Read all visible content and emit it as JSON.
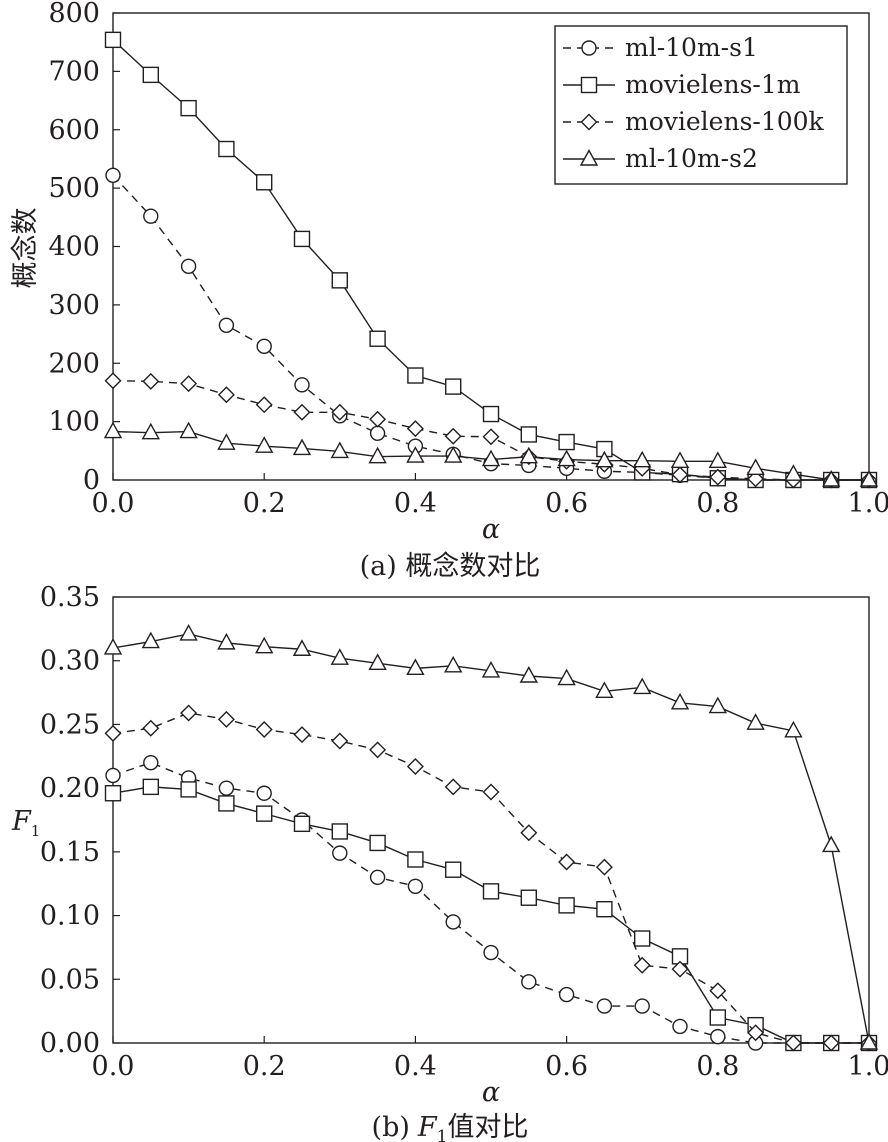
{
  "chart_data": [
    {
      "type": "line",
      "caption": "(a) 概念数对比",
      "xlabel": "α",
      "ylabel": "概念数",
      "xlim": [
        0,
        1
      ],
      "ylim": [
        0,
        800
      ],
      "xticks": [
        "0.0",
        "0.2",
        "0.4",
        "0.6",
        "0.8",
        "1.0"
      ],
      "yticks": [
        "0",
        "100",
        "200",
        "300",
        "400",
        "500",
        "600",
        "700",
        "800"
      ],
      "grid": false,
      "legend": "top-right",
      "x": [
        0,
        0.05,
        0.1,
        0.15,
        0.2,
        0.25,
        0.3,
        0.35,
        0.4,
        0.45,
        0.5,
        0.55,
        0.6,
        0.65,
        0.7,
        0.75,
        0.8,
        0.85,
        0.9,
        0.95,
        1.0
      ],
      "series": [
        {
          "name": "ml-10m-s1",
          "marker": "circle",
          "dash": true,
          "values": [
            522,
            452,
            366,
            265,
            229,
            163,
            110,
            80,
            58,
            44,
            28,
            25,
            20,
            15,
            13,
            8,
            3,
            0,
            0,
            0,
            0
          ]
        },
        {
          "name": "movielens-1m",
          "marker": "square",
          "dash": false,
          "values": [
            754,
            694,
            637,
            567,
            510,
            413,
            342,
            242,
            179,
            160,
            113,
            78,
            65,
            53,
            13,
            10,
            3,
            0,
            0,
            0,
            0
          ]
        },
        {
          "name": "movielens-100k",
          "marker": "diamond",
          "dash": true,
          "values": [
            170,
            169,
            165,
            146,
            129,
            116,
            116,
            104,
            88,
            75,
            74,
            40,
            32,
            27,
            20,
            9,
            5,
            2,
            0,
            0,
            0
          ]
        },
        {
          "name": "ml-10m-s2",
          "marker": "triangle",
          "dash": false,
          "values": [
            83,
            81,
            83,
            63,
            58,
            54,
            49,
            40,
            41,
            41,
            35,
            40,
            35,
            33,
            33,
            32,
            32,
            20,
            10,
            0,
            0
          ]
        }
      ]
    },
    {
      "type": "line",
      "caption_prefix": "(b)",
      "caption_var": "F",
      "caption_sub": "1",
      "caption_suffix": "值对比",
      "xlabel": "α",
      "ylabel_var": "F",
      "ylabel_sub": "1",
      "xlim": [
        0,
        1
      ],
      "ylim": [
        0,
        0.35
      ],
      "xticks": [
        "0.0",
        "0.2",
        "0.4",
        "0.6",
        "0.8",
        "1.0"
      ],
      "yticks": [
        "0.00",
        "0.05",
        "0.10",
        "0.15",
        "0.20",
        "0.25",
        "0.30",
        "0.35"
      ],
      "grid": false,
      "x": [
        0,
        0.05,
        0.1,
        0.15,
        0.2,
        0.25,
        0.3,
        0.35,
        0.4,
        0.45,
        0.5,
        0.55,
        0.6,
        0.65,
        0.7,
        0.75,
        0.8,
        0.85,
        0.9,
        0.95,
        1.0
      ],
      "series": [
        {
          "name": "ml-10m-s1",
          "marker": "circle",
          "dash": true,
          "values": [
            0.21,
            0.22,
            0.208,
            0.2,
            0.196,
            0.175,
            0.149,
            0.13,
            0.123,
            0.095,
            0.071,
            0.048,
            0.038,
            0.029,
            0.029,
            0.013,
            0.005,
            0.0,
            0.0,
            0.0,
            0.0
          ]
        },
        {
          "name": "movielens-1m",
          "marker": "square",
          "dash": false,
          "values": [
            0.196,
            0.201,
            0.199,
            0.188,
            0.18,
            0.172,
            0.166,
            0.157,
            0.144,
            0.136,
            0.119,
            0.114,
            0.108,
            0.105,
            0.082,
            0.068,
            0.02,
            0.014,
            0.0,
            0.0,
            0.0
          ]
        },
        {
          "name": "movielens-100k",
          "marker": "diamond",
          "dash": true,
          "values": [
            0.243,
            0.247,
            0.259,
            0.254,
            0.246,
            0.242,
            0.237,
            0.23,
            0.217,
            0.201,
            0.197,
            0.165,
            0.142,
            0.138,
            0.061,
            0.058,
            0.041,
            0.008,
            0.0,
            0.0,
            0.0
          ]
        },
        {
          "name": "ml-10m-s2",
          "marker": "triangle",
          "dash": false,
          "values": [
            0.31,
            0.315,
            0.321,
            0.314,
            0.311,
            0.309,
            0.302,
            0.298,
            0.294,
            0.296,
            0.292,
            0.288,
            0.286,
            0.276,
            0.279,
            0.267,
            0.264,
            0.251,
            0.245,
            0.155,
            0.0
          ]
        }
      ]
    }
  ]
}
